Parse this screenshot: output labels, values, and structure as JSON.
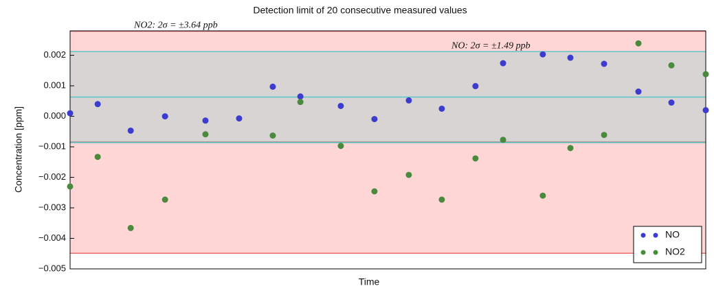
{
  "chart_data": {
    "type": "scatter",
    "title": "Detection limit of 20 consecutive measured values",
    "xlabel": "Time",
    "ylabel": "Concentration [ppm]",
    "x": [
      0,
      0.82,
      1.8,
      2.82,
      4.02,
      5.02,
      6.02,
      6.84,
      8.04,
      9.04,
      10.06,
      11.04,
      12.04,
      12.86,
      14.04,
      14.86,
      15.86,
      16.88,
      17.86,
      18.88
    ],
    "xlim": [
      0,
      18.88
    ],
    "ylim": [
      -0.005,
      0.0028
    ],
    "yticks": [
      {
        "value": -0.005,
        "label": "−0.005"
      },
      {
        "value": -0.004,
        "label": "−0.004"
      },
      {
        "value": -0.003,
        "label": "−0.003"
      },
      {
        "value": -0.002,
        "label": "−0.002"
      },
      {
        "value": -0.001,
        "label": "−0.001"
      },
      {
        "value": 0,
        "label": "0.000"
      },
      0.001,
      0.002
    ],
    "series": [
      {
        "name": "NO",
        "color": "#3c3ccf",
        "values": [
          0.0001,
          0.0004,
          -0.00047,
          0.0,
          -0.00014,
          -7e-05,
          0.00097,
          0.00065,
          0.00034,
          -9e-05,
          0.00052,
          0.00025,
          0.00099,
          0.00174,
          0.00203,
          0.00192,
          0.00172,
          0.00081,
          0.00045,
          0.0002
        ]
      },
      {
        "name": "NO2",
        "color": "#4a8a3e",
        "values": [
          -0.0023,
          -0.00133,
          -0.00366,
          -0.00273,
          -0.00059,
          null,
          -0.00063,
          0.00047,
          -0.00097,
          -0.00246,
          -0.00192,
          -0.00273,
          -0.00138,
          -0.00077,
          -0.0026,
          -0.00104,
          -0.00061,
          0.00239,
          0.00167,
          0.00138
        ]
      }
    ],
    "bands": [
      {
        "mean": -0.00085,
        "two_sigma": 0.00364,
        "fill": "#ffd6d6",
        "line": "#e86a6a",
        "mean_line": "#8a3a3a",
        "annotation": "NO2: 2σ = ±3.64 ppb",
        "annotation_color": "#e03030"
      },
      {
        "mean": 0.00063,
        "two_sigma": 0.00149,
        "fill": "#d8d4d4",
        "line": "#5ac6c6",
        "mean_line": "#5ac6c6",
        "annotation": "NO: 2σ = ±1.49 ppb",
        "annotation_color": "#4fc0c0"
      }
    ],
    "legend": "lower right"
  }
}
